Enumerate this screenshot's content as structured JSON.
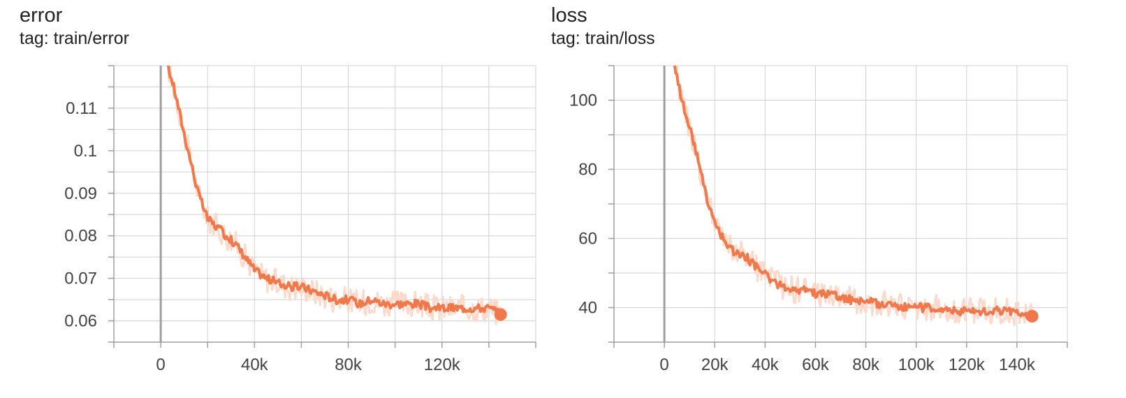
{
  "panels": [
    {
      "title": "error",
      "tag": "tag: train/error"
    },
    {
      "title": "loss",
      "tag": "tag: train/loss"
    }
  ],
  "colors": {
    "series": "#f0784a",
    "raw": "#fbd9cb",
    "grid": "#d0d0d0",
    "zero_line": "#9e9e9e"
  },
  "chart_data": [
    {
      "type": "line",
      "title": "error",
      "subtitle": "tag: train/error",
      "xlabel": "",
      "ylabel": "",
      "xlim": [
        -20000,
        160000
      ],
      "ylim": [
        0.055,
        0.12
      ],
      "xticks": [
        0,
        40000,
        80000,
        120000
      ],
      "xtick_labels": [
        "0",
        "40k",
        "80k",
        "120k"
      ],
      "yticks": [
        0.06,
        0.07,
        0.08,
        0.09,
        0.1,
        0.11
      ],
      "ytick_labels": [
        "0.06",
        "0.07",
        "0.08",
        "0.09",
        "0.1",
        "0.11"
      ],
      "grid": true,
      "series": [
        {
          "values": [
            [
              3000,
              0.12
            ],
            [
              6000,
              0.114
            ],
            [
              10000,
              0.104
            ],
            [
              13000,
              0.097
            ],
            [
              16000,
              0.09
            ],
            [
              20000,
              0.084
            ],
            [
              24000,
              0.082
            ],
            [
              28000,
              0.08
            ],
            [
              32000,
              0.078
            ],
            [
              36000,
              0.075
            ],
            [
              40000,
              0.072
            ],
            [
              45000,
              0.07
            ],
            [
              50000,
              0.069
            ],
            [
              55000,
              0.068
            ],
            [
              60000,
              0.068
            ],
            [
              65000,
              0.067
            ],
            [
              70000,
              0.066
            ],
            [
              75000,
              0.065
            ],
            [
              80000,
              0.065
            ],
            [
              85000,
              0.064
            ],
            [
              90000,
              0.065
            ],
            [
              95000,
              0.064
            ],
            [
              100000,
              0.064
            ],
            [
              105000,
              0.064
            ],
            [
              110000,
              0.064
            ],
            [
              115000,
              0.063
            ],
            [
              120000,
              0.063
            ],
            [
              125000,
              0.063
            ],
            [
              130000,
              0.063
            ],
            [
              135000,
              0.063
            ],
            [
              140000,
              0.063
            ],
            [
              145000,
              0.0615
            ]
          ]
        }
      ]
    },
    {
      "type": "line",
      "title": "loss",
      "subtitle": "tag: train/loss",
      "xlabel": "",
      "ylabel": "",
      "xlim": [
        -20000,
        160000
      ],
      "ylim": [
        30,
        110
      ],
      "xticks": [
        0,
        20000,
        40000,
        60000,
        80000,
        100000,
        120000,
        140000
      ],
      "xtick_labels": [
        "0",
        "20k",
        "40k",
        "60k",
        "80k",
        "100k",
        "120k",
        "140k"
      ],
      "yticks": [
        40,
        60,
        80,
        100
      ],
      "ytick_labels": [
        "40",
        "60",
        "80",
        "100"
      ],
      "grid": true,
      "series": [
        {
          "values": [
            [
              4000,
              110
            ],
            [
              7000,
              100
            ],
            [
              10000,
              92
            ],
            [
              13000,
              84
            ],
            [
              16000,
              74
            ],
            [
              20000,
              64
            ],
            [
              24000,
              59
            ],
            [
              28000,
              56
            ],
            [
              32000,
              55
            ],
            [
              36000,
              52
            ],
            [
              40000,
              50
            ],
            [
              44000,
              47
            ],
            [
              48000,
              46
            ],
            [
              52000,
              45
            ],
            [
              56000,
              45
            ],
            [
              60000,
              44
            ],
            [
              65000,
              44
            ],
            [
              70000,
              43
            ],
            [
              75000,
              42
            ],
            [
              80000,
              42
            ],
            [
              85000,
              41
            ],
            [
              90000,
              41
            ],
            [
              95000,
              40
            ],
            [
              100000,
              40
            ],
            [
              105000,
              40
            ],
            [
              110000,
              40
            ],
            [
              115000,
              39
            ],
            [
              120000,
              39
            ],
            [
              125000,
              39
            ],
            [
              130000,
              39
            ],
            [
              135000,
              39
            ],
            [
              140000,
              38.5
            ],
            [
              146000,
              37.5
            ]
          ]
        }
      ]
    }
  ]
}
